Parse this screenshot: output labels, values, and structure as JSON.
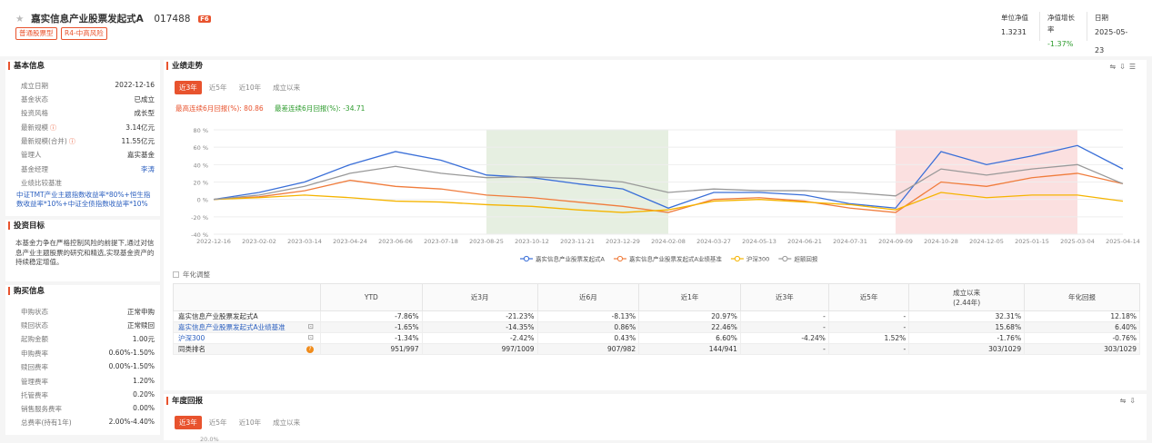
{
  "header": {
    "fund_name": "嘉实信息产业股票发起式A",
    "fund_code": "017488",
    "badge": "F6",
    "tags": [
      "普通股票型",
      "R4-中高风险"
    ],
    "stats": [
      {
        "label": "单位净值",
        "value": "1.3231"
      },
      {
        "label": "净值增长率",
        "value": "-1.37%"
      },
      {
        "label": "日期",
        "value": "2025-05-23"
      }
    ]
  },
  "basic": {
    "title": "基本信息",
    "rows": [
      {
        "k": "成立日期",
        "v": "2022-12-16"
      },
      {
        "k": "基金状态",
        "v": "已成立"
      },
      {
        "k": "投资风格",
        "v": "成长型"
      },
      {
        "k": "最新规模",
        "v": "3.14亿元"
      },
      {
        "k": "最新规模(合并)",
        "v": "11.55亿元"
      },
      {
        "k": "管理人",
        "v": "嘉实基金"
      },
      {
        "k": "基金经理",
        "v": "李涛"
      },
      {
        "k": "业绩比较基准",
        "v": ""
      }
    ],
    "benchmark": "中证TMT产业主题指数收益率*80%+恒生指数收益率*10%+中证全债指数收益率*10%"
  },
  "objective": {
    "title": "投资目标",
    "text": "本基金力争在严格控制风险的前提下,通过对信息产业主题股票的研究和精选,实现基金资产的持续稳定增值。"
  },
  "purchase": {
    "title": "购买信息",
    "rows": [
      {
        "k": "申购状态",
        "v": "正常申购"
      },
      {
        "k": "赎回状态",
        "v": "正常赎回"
      },
      {
        "k": "起购金额",
        "v": "1.00元"
      },
      {
        "k": "申购费率",
        "v": "0.60%-1.50%"
      },
      {
        "k": "赎回费率",
        "v": "0.00%-1.50%"
      },
      {
        "k": "管理费率",
        "v": "1.20%"
      },
      {
        "k": "托管费率",
        "v": "0.20%"
      },
      {
        "k": "销售服务费率",
        "v": "0.00%"
      },
      {
        "k": "总费率(持有1年)",
        "v": "2.00%-4.40%"
      }
    ]
  },
  "performance": {
    "title": "业绩走势",
    "tabs": [
      "近3年",
      "近5年",
      "近10年",
      "成立以来"
    ],
    "max_gain_label": "最高连续6月回报(%):",
    "max_gain": "80.86",
    "max_loss_label": "最差连续6月回报(%):",
    "max_loss": "-34.71",
    "annualize_label": "年化调整",
    "legend": [
      "嘉实信息产业股票发起式A",
      "嘉实信息产业股票发起式A业绩基准",
      "沪深300",
      "超额回报"
    ]
  },
  "chart_data": {
    "type": "line",
    "ylim": [
      -40,
      80
    ],
    "yticks": [
      "80 %",
      "60 %",
      "40 %",
      "20 %",
      "0 %",
      "-20 %",
      "-40 %"
    ],
    "x": [
      "2022-12-16",
      "2023-02-02",
      "2023-03-14",
      "2023-04-24",
      "2023-06-06",
      "2023-07-18",
      "2023-08-25",
      "2023-10-12",
      "2023-11-21",
      "2023-12-29",
      "2024-02-08",
      "2024-03-27",
      "2024-05-13",
      "2024-06-21",
      "2024-07-31",
      "2024-09-09",
      "2024-10-28",
      "2024-12-05",
      "2025-01-15",
      "2025-03-04",
      "2025-04-14"
    ],
    "series": [
      {
        "name": "嘉实信息产业股票发起式A",
        "color": "#3a6fd8",
        "values": [
          0,
          8,
          20,
          40,
          55,
          45,
          28,
          25,
          18,
          12,
          -10,
          8,
          8,
          5,
          -5,
          -10,
          55,
          40,
          50,
          62,
          35
        ]
      },
      {
        "name": "嘉实信息产业股票发起式A业绩基准",
        "color": "#f07c3c",
        "values": [
          0,
          3,
          10,
          22,
          15,
          12,
          5,
          2,
          -3,
          -8,
          -15,
          0,
          2,
          -2,
          -10,
          -15,
          20,
          15,
          25,
          30,
          18
        ]
      },
      {
        "name": "沪深300",
        "color": "#f5b400",
        "values": [
          0,
          2,
          5,
          2,
          -2,
          -3,
          -6,
          -8,
          -12,
          -15,
          -12,
          -2,
          0,
          -3,
          -6,
          -12,
          8,
          2,
          5,
          5,
          -2
        ]
      },
      {
        "name": "超额回报",
        "color": "#999999",
        "values": [
          0,
          5,
          15,
          30,
          38,
          30,
          25,
          26,
          24,
          20,
          8,
          12,
          10,
          10,
          8,
          4,
          35,
          28,
          35,
          40,
          18
        ]
      }
    ],
    "shaded_regions": [
      {
        "from": "2023-08-25",
        "to": "2024-02-08",
        "color": "#e6efe1"
      },
      {
        "from": "2024-09-09",
        "to": "2025-03-04",
        "color": "#fbe0e0"
      }
    ]
  },
  "table": {
    "headers": [
      "YTD",
      "近3月",
      "近6月",
      "近1年",
      "近3年",
      "近5年",
      "成立以来\n(2.44年)",
      "年化回报"
    ],
    "rows": [
      {
        "name": "嘉实信息产业股票发起式A",
        "cells": [
          "-7.86%",
          "-21.23%",
          "-8.13%",
          "20.97%",
          "-",
          "-",
          "32.31%",
          "12.18%"
        ]
      },
      {
        "name": "嘉实信息产业股票发起式A业绩基准",
        "cells": [
          "-1.65%",
          "-14.35%",
          "0.86%",
          "22.46%",
          "-",
          "-",
          "15.68%",
          "6.40%"
        ]
      },
      {
        "name": "沪深300",
        "cells": [
          "-1.34%",
          "-2.42%",
          "0.43%",
          "6.60%",
          "-4.24%",
          "1.52%",
          "-1.76%",
          "-0.76%"
        ]
      },
      {
        "name": "同类排名",
        "cells": [
          "951/997",
          "997/1009",
          "907/982",
          "144/941",
          "-",
          "-",
          "303/1029",
          "303/1029"
        ]
      }
    ]
  },
  "annual": {
    "title": "年度回报",
    "tabs": [
      "近3年",
      "近5年",
      "近10年",
      "成立以来"
    ],
    "first_tick": "20.0%"
  }
}
